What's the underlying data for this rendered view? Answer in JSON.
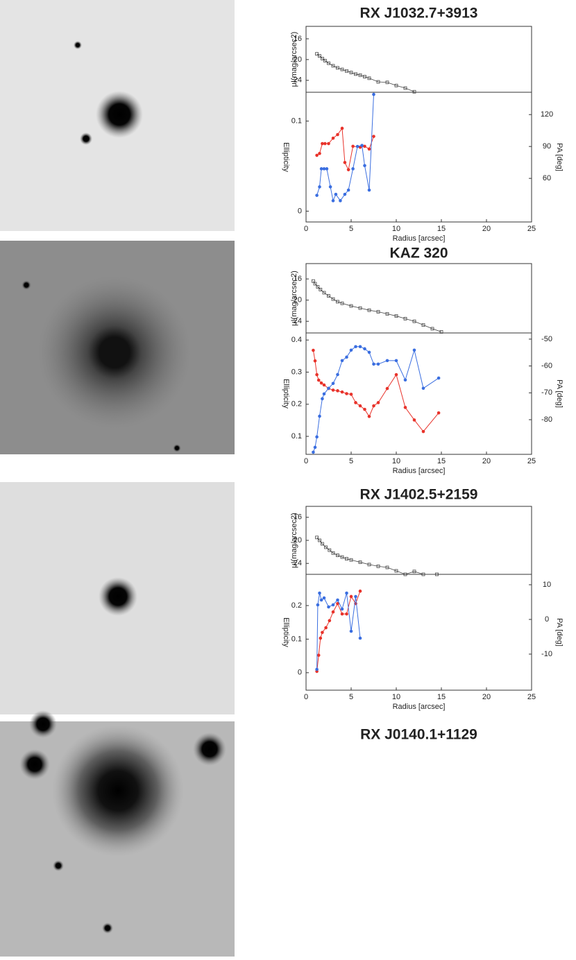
{
  "chart_data": [
    {
      "type": "profile",
      "title": "RX J1032.7+3913",
      "xlabel": "Radius [arcsec]",
      "xlim": [
        0,
        25
      ],
      "xticks": [
        0,
        5,
        10,
        15,
        20,
        25
      ],
      "sb_ylabel": "μI(mag/arcsec2)",
      "sb_ylim": [
        26.3,
        13.6
      ],
      "sb_yticks": [
        16,
        20,
        24
      ],
      "sb_x": [
        1.2,
        1.5,
        1.8,
        2.1,
        2.5,
        3,
        3.5,
        4,
        4.5,
        5,
        5.5,
        6,
        6.5,
        7,
        8,
        9,
        10,
        11,
        12
      ],
      "sb_values": [
        18.9,
        19.3,
        19.8,
        20.2,
        20.7,
        21.2,
        21.6,
        21.9,
        22.2,
        22.5,
        22.8,
        23.0,
        23.3,
        23.6,
        24.3,
        24.4,
        25.0,
        25.5,
        26.2
      ],
      "ylabel": "Ellipticity",
      "ylim": [
        -0.012,
        0.132
      ],
      "yticks": [
        0,
        0.1
      ],
      "y2label": "PA [deg]",
      "y2lim": [
        19,
        141
      ],
      "y2ticks": [
        60,
        90,
        120
      ],
      "series": [
        {
          "color": "#e8322a",
          "x": [
            1.2,
            1.5,
            1.8,
            2.1,
            2.5,
            3,
            3.5,
            4,
            4.3,
            4.7,
            5.2,
            6,
            6.5,
            7,
            7.5
          ],
          "values": [
            0.062,
            0.064,
            0.075,
            0.075,
            0.075,
            0.081,
            0.085,
            0.092,
            0.054,
            0.046,
            0.072,
            0.071,
            0.072,
            0.069,
            0.083
          ]
        },
        {
          "color": "#3a6ee0",
          "axis": "y2",
          "x": [
            1.2,
            1.5,
            1.7,
            2,
            2.3,
            2.7,
            3,
            3.3,
            3.8,
            4.3,
            4.7,
            5.2,
            5.7,
            6.2,
            6.5,
            7,
            7.5
          ],
          "values": [
            44,
            52,
            69,
            69,
            69,
            52,
            39,
            45,
            39,
            45,
            49,
            69,
            90,
            91,
            72,
            49,
            139
          ]
        }
      ]
    },
    {
      "type": "profile",
      "title": "KAZ 320",
      "xlabel": "Radius [arcsec]",
      "xlim": [
        0,
        25
      ],
      "xticks": [
        0,
        5,
        10,
        15,
        20,
        25
      ],
      "sb_ylabel": "μI(mag/arcsec2)",
      "sb_ylim": [
        26.2,
        13.1
      ],
      "sb_yticks": [
        16,
        20,
        24
      ],
      "sb_x": [
        0.8,
        1,
        1.3,
        1.6,
        2,
        2.5,
        3,
        3.5,
        4,
        5,
        6,
        7,
        8,
        9,
        10,
        11,
        12,
        13,
        14,
        15
      ],
      "sb_values": [
        16.4,
        16.9,
        17.5,
        18.0,
        18.6,
        19.2,
        19.8,
        20.3,
        20.6,
        21.1,
        21.5,
        21.9,
        22.2,
        22.6,
        23.0,
        23.5,
        24.0,
        24.7,
        25.4,
        26.0
      ],
      "ylabel": "Ellipticity",
      "ylim": [
        0.044,
        0.422
      ],
      "yticks": [
        0.1,
        0.2,
        0.3,
        0.4
      ],
      "y2label": "PA [deg]",
      "y2lim": [
        -92.9,
        -47.7
      ],
      "y2ticks": [
        -80,
        -70,
        -60,
        -50
      ],
      "series": [
        {
          "color": "#e8322a",
          "x": [
            0.8,
            1,
            1.2,
            1.4,
            1.7,
            2,
            2.5,
            3,
            3.5,
            4,
            4.5,
            5,
            5.5,
            6,
            6.5,
            7,
            7.5,
            8,
            9,
            10,
            11,
            12,
            13,
            14.7
          ],
          "values": [
            0.368,
            0.335,
            0.292,
            0.275,
            0.266,
            0.26,
            0.249,
            0.244,
            0.242,
            0.238,
            0.233,
            0.231,
            0.205,
            0.195,
            0.184,
            0.162,
            0.195,
            0.205,
            0.249,
            0.292,
            0.19,
            0.151,
            0.115,
            0.173
          ]
        },
        {
          "color": "#3a6ee0",
          "axis": "y2",
          "x": [
            0.8,
            1,
            1.2,
            1.5,
            1.8,
            2,
            2.5,
            3,
            3.5,
            4,
            4.5,
            5,
            5.5,
            6,
            6.5,
            7,
            7.5,
            8,
            9,
            10,
            11,
            12,
            13,
            14.7
          ],
          "values": [
            -92.1,
            -90.3,
            -86.4,
            -78.7,
            -72.2,
            -70.4,
            -68.3,
            -66.5,
            -63.2,
            -58.0,
            -56.7,
            -54.1,
            -52.8,
            -52.8,
            -53.6,
            -54.9,
            -59.3,
            -59.3,
            -58.0,
            -58.0,
            -65.2,
            -54.1,
            -68.3,
            -64.5
          ]
        }
      ]
    },
    {
      "type": "profile",
      "title": "RX J1402.5+2159",
      "xlabel": "Radius [arcsec]",
      "xlim": [
        0,
        25
      ],
      "xticks": [
        0,
        5,
        10,
        15,
        20,
        25
      ],
      "sb_ylabel": "μI(mag/arcsec2)",
      "sb_ylim": [
        25.9,
        14.1
      ],
      "sb_yticks": [
        16,
        20,
        24
      ],
      "sb_x": [
        1.2,
        1.5,
        1.8,
        2.2,
        2.6,
        3,
        3.5,
        4,
        4.5,
        5,
        6,
        7,
        8,
        9,
        10,
        11,
        12,
        13,
        14.5
      ],
      "sb_values": [
        19.5,
        20.0,
        20.6,
        21.2,
        21.7,
        22.2,
        22.6,
        22.9,
        23.2,
        23.4,
        23.8,
        24.2,
        24.5,
        24.7,
        25.3,
        25.9,
        25.4,
        25.9,
        25.9
      ],
      "ylabel": "Ellipticity",
      "ylim": [
        -0.052,
        0.293
      ],
      "yticks": [
        0,
        0.1,
        0.2
      ],
      "y2label": "PA [deg]",
      "y2lim": [
        -20.4,
        13
      ],
      "y2ticks": [
        -10,
        0,
        10
      ],
      "series": [
        {
          "color": "#e8322a",
          "x": [
            1.2,
            1.4,
            1.6,
            1.8,
            2.2,
            2.6,
            3,
            3.5,
            4,
            4.5,
            5,
            5.5,
            6
          ],
          "values": [
            0.004,
            0.052,
            0.103,
            0.12,
            0.134,
            0.155,
            0.181,
            0.206,
            0.175,
            0.175,
            0.227,
            0.206,
            0.243
          ]
        },
        {
          "color": "#3a6ee0",
          "axis": "y2",
          "x": [
            1.2,
            1.3,
            1.5,
            1.7,
            2,
            2.5,
            3,
            3.5,
            4,
            4.5,
            5,
            5.5,
            6
          ],
          "values": [
            -14.4,
            4.2,
            7.6,
            5.6,
            6.2,
            3.6,
            4.2,
            5.6,
            3.0,
            7.6,
            -3.4,
            6.6,
            -5.4
          ]
        }
      ]
    },
    {
      "title": "RX J0140.1+1129"
    }
  ]
}
